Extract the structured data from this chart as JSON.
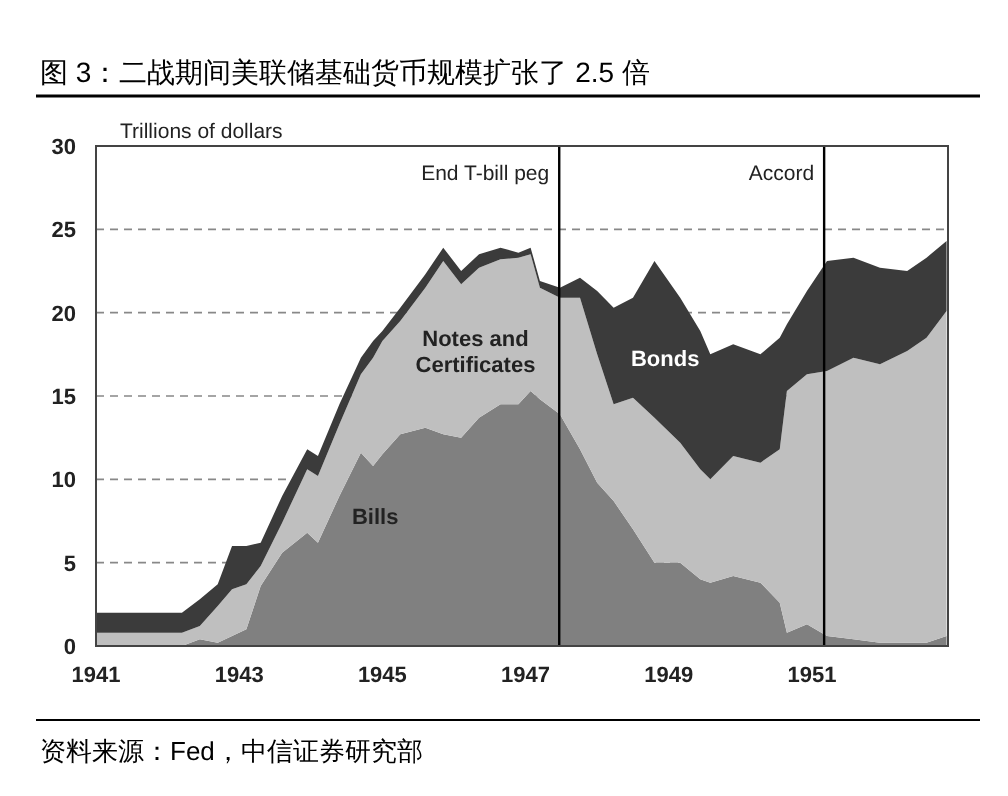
{
  "chart_data": {
    "type": "area",
    "stacked": true,
    "title": "图 3：二战期间美联储基础货币规模扩张了 2.5 倍",
    "ylabel": "Trillions of dollars",
    "annotations": [
      "资料来源：Fed，中信证券研究部"
    ],
    "x": [
      1941,
      1941.9,
      1942.2,
      1942.45,
      1942.7,
      1942.9,
      1943.1,
      1943.3,
      1943.6,
      1943.95,
      1944.1,
      1944.4,
      1944.7,
      1944.87,
      1945.0,
      1945.25,
      1945.6,
      1945.85,
      1946.1,
      1946.35,
      1946.65,
      1946.9,
      1947.07,
      1947.2,
      1947.48,
      1947.76,
      1948.0,
      1948.23,
      1948.5,
      1948.8,
      1949.16,
      1949.44,
      1949.58,
      1949.9,
      1950.28,
      1950.55,
      1950.65,
      1950.93,
      1951.21,
      1951.58,
      1951.95,
      1952.33,
      1952.6,
      1952.88
    ],
    "series": [
      {
        "name": "Bills",
        "color": "#808080",
        "values": [
          0,
          0,
          0,
          0.4,
          0.2,
          0.6,
          1.0,
          3.6,
          5.6,
          6.8,
          6.2,
          9.0,
          11.6,
          10.8,
          11.5,
          12.7,
          13.1,
          12.7,
          12.5,
          13.7,
          14.5,
          14.5,
          15.3,
          14.8,
          13.9,
          11.8,
          9.8,
          8.7,
          7.0,
          5.0,
          5.0,
          4.0,
          3.8,
          4.2,
          3.8,
          2.6,
          0.8,
          1.3,
          0.6,
          0.4,
          0.2,
          0.2,
          0.2,
          0.6
        ]
      },
      {
        "name": "Notes and Certificates",
        "color": "#bfbfbf",
        "values": [
          0.8,
          0.8,
          0.8,
          0.8,
          2.2,
          2.8,
          2.7,
          1.2,
          1.8,
          3.8,
          4.0,
          4.3,
          4.7,
          6.5,
          6.8,
          6.8,
          8.4,
          10.4,
          9.2,
          9.0,
          8.7,
          8.8,
          8.2,
          6.7,
          7.0,
          9.1,
          7.7,
          5.8,
          7.9,
          8.7,
          7.2,
          6.6,
          6.2,
          7.2,
          7.2,
          9.2,
          14.5,
          15.0,
          15.9,
          16.9,
          16.7,
          17.5,
          18.3,
          19.5
        ]
      },
      {
        "name": "Bonds",
        "color": "#3b3b3b",
        "values": [
          1.2,
          1.2,
          1.2,
          1.6,
          1.3,
          2.6,
          2.3,
          1.4,
          1.6,
          1.2,
          1.2,
          1.2,
          1.0,
          1.0,
          0.6,
          0.8,
          0.8,
          0.8,
          0.8,
          0.8,
          0.7,
          0.3,
          0.4,
          0.4,
          0.6,
          1.2,
          3.8,
          5.8,
          6.0,
          9.4,
          8.7,
          8.3,
          7.5,
          6.7,
          6.5,
          6.7,
          4.0,
          5.0,
          6.6,
          6.0,
          5.8,
          4.8,
          4.8,
          4.2
        ]
      }
    ],
    "xlim": [
      1941,
      1952.9
    ],
    "xticks": [
      1941,
      1943,
      1945,
      1947,
      1949,
      1951
    ],
    "ylim": [
      0,
      30
    ],
    "yticks": [
      0,
      5,
      10,
      15,
      20,
      25,
      30
    ],
    "grid": "y",
    "ref_lines": [
      {
        "axis": "x",
        "value": 1947.47,
        "label": "End T-bill peg",
        "color": "#000000"
      },
      {
        "axis": "x",
        "value": 1951.17,
        "label": "Accord",
        "color": "#000000"
      }
    ]
  }
}
